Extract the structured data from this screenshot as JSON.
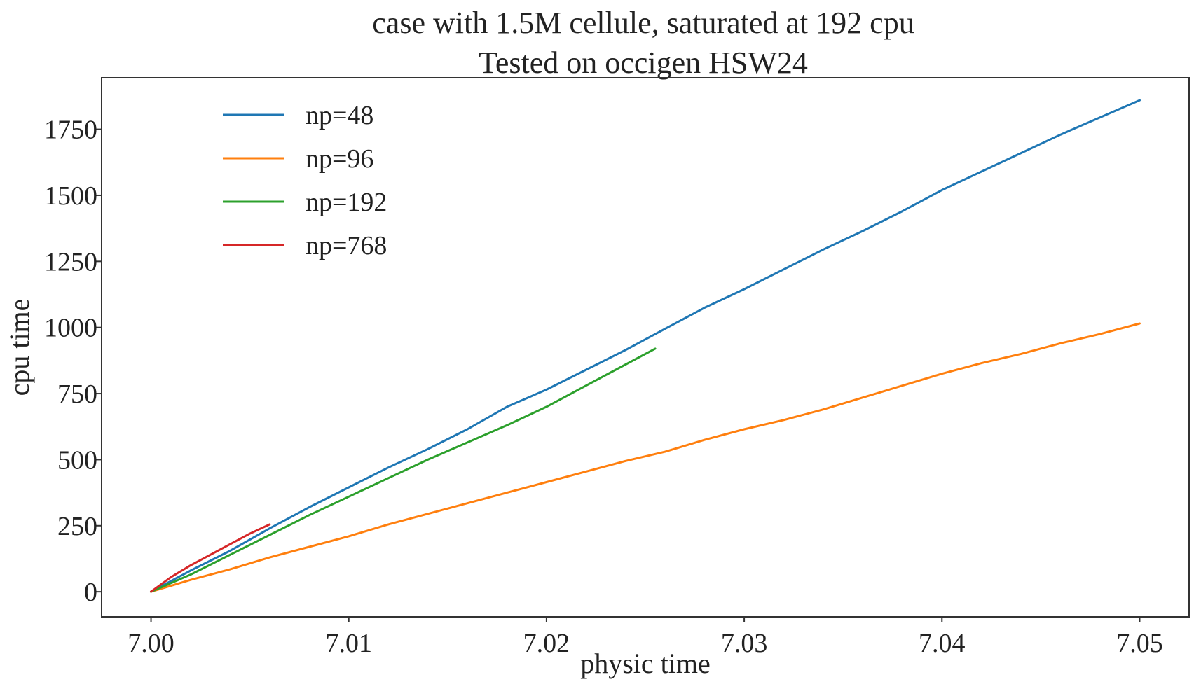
{
  "chart_data": {
    "type": "line",
    "title": "case with 1.5M cellule, saturated at 192 cpu",
    "subtitle": "Tested on occigen HSW24",
    "xlabel": "physic time",
    "ylabel": "cpu time",
    "xlim": [
      6.9975,
      7.0525
    ],
    "ylim": [
      -95,
      1945
    ],
    "xticks": [
      7.0,
      7.01,
      7.02,
      7.03,
      7.04,
      7.05
    ],
    "xtick_labels": [
      "7.00",
      "7.01",
      "7.02",
      "7.03",
      "7.04",
      "7.05"
    ],
    "yticks": [
      0,
      250,
      500,
      750,
      1000,
      1250,
      1500,
      1750
    ],
    "ytick_labels": [
      "0",
      "250",
      "500",
      "750",
      "1000",
      "1250",
      "1500",
      "1750"
    ],
    "grid": false,
    "legend_position": "top-left",
    "series": [
      {
        "name": "np=48",
        "color": "#1f77b4",
        "x": [
          7.0,
          7.002,
          7.004,
          7.006,
          7.008,
          7.01,
          7.012,
          7.014,
          7.016,
          7.018,
          7.02,
          7.022,
          7.024,
          7.026,
          7.028,
          7.03,
          7.032,
          7.034,
          7.036,
          7.038,
          7.04,
          7.042,
          7.044,
          7.046,
          7.048,
          7.05
        ],
        "y": [
          0,
          80,
          155,
          240,
          320,
          395,
          470,
          540,
          615,
          700,
          765,
          840,
          915,
          995,
          1075,
          1145,
          1220,
          1295,
          1365,
          1440,
          1520,
          1590,
          1660,
          1730,
          1795,
          1860
        ]
      },
      {
        "name": "np=96",
        "color": "#ff7f0e",
        "x": [
          7.0,
          7.002,
          7.004,
          7.006,
          7.008,
          7.01,
          7.012,
          7.014,
          7.016,
          7.018,
          7.02,
          7.022,
          7.024,
          7.026,
          7.028,
          7.03,
          7.032,
          7.034,
          7.036,
          7.038,
          7.04,
          7.042,
          7.044,
          7.046,
          7.048,
          7.05
        ],
        "y": [
          0,
          45,
          85,
          130,
          170,
          210,
          255,
          295,
          335,
          375,
          415,
          455,
          495,
          530,
          575,
          615,
          650,
          690,
          735,
          780,
          825,
          865,
          900,
          940,
          975,
          1015
        ]
      },
      {
        "name": "np=192",
        "color": "#2ca02c",
        "x": [
          7.0,
          7.002,
          7.004,
          7.006,
          7.008,
          7.01,
          7.012,
          7.014,
          7.016,
          7.018,
          7.02,
          7.022,
          7.024,
          7.0255
        ],
        "y": [
          0,
          65,
          140,
          215,
          290,
          360,
          430,
          500,
          565,
          630,
          700,
          780,
          860,
          920
        ]
      },
      {
        "name": "np=768",
        "color": "#d62728",
        "x": [
          7.0,
          7.001,
          7.002,
          7.003,
          7.004,
          7.005,
          7.006
        ],
        "y": [
          0,
          55,
          100,
          140,
          180,
          220,
          255
        ]
      }
    ]
  }
}
